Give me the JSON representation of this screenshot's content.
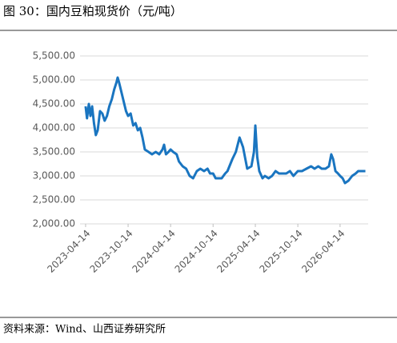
{
  "chart_data": {
    "type": "line",
    "title": "图 30：国内豆粕现货价（元/吨）",
    "source": "资料来源：Wind、山西证券研究所",
    "x": [
      "2023-04-14",
      "2023-04-20",
      "2023-04-28",
      "2023-05-05",
      "2023-05-12",
      "2023-05-20",
      "2023-05-28",
      "2023-06-05",
      "2023-06-15",
      "2023-06-25",
      "2023-07-05",
      "2023-07-15",
      "2023-07-25",
      "2023-08-05",
      "2023-08-15",
      "2023-08-25",
      "2023-08-30",
      "2023-09-05",
      "2023-09-15",
      "2023-09-25",
      "2023-10-05",
      "2023-10-14",
      "2023-10-25",
      "2023-11-05",
      "2023-11-15",
      "2023-11-25",
      "2023-12-05",
      "2023-12-15",
      "2023-12-25",
      "2024-01-10",
      "2024-01-25",
      "2024-02-10",
      "2024-02-25",
      "2024-03-10",
      "2024-03-17",
      "2024-03-25",
      "2024-04-05",
      "2024-04-14",
      "2024-04-25",
      "2024-05-10",
      "2024-05-20",
      "2024-06-05",
      "2024-06-20",
      "2024-07-05",
      "2024-07-20",
      "2024-08-05",
      "2024-08-20",
      "2024-09-05",
      "2024-09-20",
      "2024-10-01",
      "2024-10-14",
      "2024-10-25",
      "2024-11-05",
      "2024-11-20",
      "2024-12-05",
      "2024-12-15",
      "2025-01-05",
      "2025-01-20",
      "2025-02-05",
      "2025-02-20",
      "2025-03-10",
      "2025-03-28",
      "2025-04-08",
      "2025-04-14",
      "2025-04-22",
      "2025-05-01",
      "2025-05-15",
      "2025-05-25",
      "2025-06-10",
      "2025-06-25",
      "2025-07-10",
      "2025-07-25",
      "2025-08-10",
      "2025-08-25",
      "2025-09-10",
      "2025-09-25",
      "2025-10-14",
      "2025-11-01",
      "2025-11-20",
      "2025-12-10",
      "2025-12-25",
      "2026-01-10",
      "2026-01-25",
      "2026-02-10",
      "2026-02-25",
      "2026-03-07",
      "2026-03-15",
      "2026-03-25",
      "2026-04-05",
      "2026-04-14",
      "2026-04-25",
      "2026-05-05",
      "2026-05-20",
      "2026-06-05",
      "2026-06-20",
      "2026-07-01",
      "2026-07-15",
      "2026-08-01"
    ],
    "series": [
      {
        "name": "豆粕现货价",
        "color": "#1a75c0",
        "values": [
          4450,
          4200,
          4500,
          4250,
          4450,
          4100,
          3850,
          3950,
          4350,
          4300,
          4150,
          4250,
          4450,
          4600,
          4800,
          4950,
          5050,
          4950,
          4750,
          4550,
          4350,
          4250,
          4300,
          4050,
          4100,
          3950,
          4000,
          3800,
          3550,
          3500,
          3450,
          3500,
          3450,
          3550,
          3650,
          3450,
          3500,
          3550,
          3500,
          3450,
          3300,
          3200,
          3150,
          3000,
          2950,
          3100,
          3150,
          3100,
          3150,
          3050,
          3050,
          2950,
          2950,
          2950,
          3050,
          3100,
          3350,
          3500,
          3800,
          3600,
          3150,
          3200,
          3500,
          4050,
          3400,
          3100,
          2950,
          3000,
          2950,
          3000,
          3100,
          3050,
          3050,
          3050,
          3100,
          3000,
          3100,
          3100,
          3150,
          3200,
          3150,
          3200,
          3150,
          3150,
          3200,
          3450,
          3350,
          3100,
          3050,
          3000,
          2950,
          2850,
          2900,
          3000,
          3050,
          3100,
          3100,
          3100
        ]
      }
    ],
    "xlim": [
      "2023-03-21",
      "2026-08-13"
    ],
    "xticks": [
      "2023-04-14",
      "2023-10-14",
      "2024-04-14",
      "2024-10-14",
      "2025-04-14",
      "2025-10-14",
      "2026-04-14"
    ],
    "ylim": [
      2000,
      5500
    ],
    "yticks": [
      {
        "value": 2000,
        "label": "2,000.00"
      },
      {
        "value": 2500,
        "label": "2,500.00"
      },
      {
        "value": 3000,
        "label": "3,000.00"
      },
      {
        "value": 3500,
        "label": "3,500.00"
      },
      {
        "value": 4000,
        "label": "4,000.00"
      },
      {
        "value": 4500,
        "label": "4,500.00"
      },
      {
        "value": 5000,
        "label": "5,000.00"
      },
      {
        "value": 5500,
        "label": "5,500.00"
      }
    ],
    "grid": true
  }
}
